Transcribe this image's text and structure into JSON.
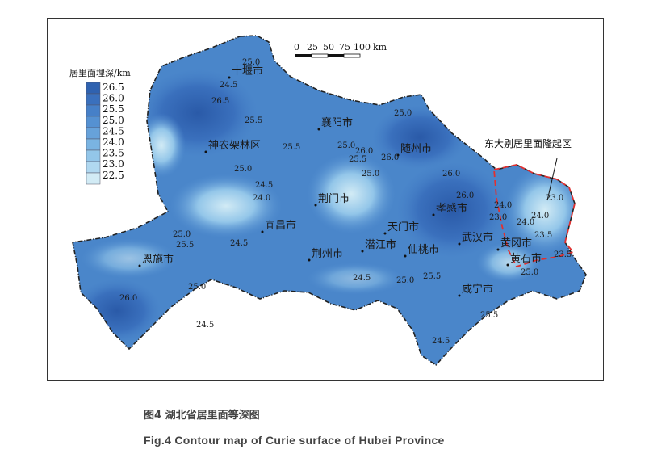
{
  "legend": {
    "title": "居里面埋深/km",
    "levels": [
      "26.5",
      "26.0",
      "25.5",
      "25.0",
      "24.5",
      "24.0",
      "23.5",
      "23.0",
      "22.5"
    ],
    "colors": [
      "#2f62b0",
      "#3a70bd",
      "#4680c8",
      "#5591d2",
      "#67a2da",
      "#7ab4e2",
      "#93c6e9",
      "#b0d8f0",
      "#d2ebf5"
    ]
  },
  "scale_bar": {
    "ticks": [
      "0",
      "25",
      "50",
      "75",
      "100"
    ],
    "unit": "km"
  },
  "cities": [
    "十堰市",
    "襄阳市",
    "神农架林区",
    "随州市",
    "荆门市",
    "孝感市",
    "宜昌市",
    "天门市",
    "武汉市",
    "黄冈市",
    "潜江市",
    "仙桃市",
    "荆州市",
    "恩施市",
    "黄石市",
    "咸宁市"
  ],
  "contour_labels": [
    "23.0",
    "24.0",
    "26.5",
    "25.0",
    "25.5",
    "24.5",
    "25.0",
    "26.0",
    "25.5",
    "25.0",
    "26.0",
    "26.0",
    "25.5",
    "25.0",
    "24.5",
    "24.0",
    "26.0",
    "25.0",
    "24.0",
    "23.0",
    "24.0",
    "23.5",
    "25.0",
    "25.5",
    "24.5",
    "24.5",
    "25.0",
    "25.5",
    "25.0",
    "25.5",
    "24.5",
    "26.0",
    "24.5",
    "25.0",
    "23.5"
  ],
  "uplift_zone": {
    "label": "东大别居里面隆起区",
    "border_color": "#e03030"
  },
  "caption": {
    "cn": "图4 湖北省居里面等深图",
    "en": "Fig.4 Contour map of Curie surface of Hubei Province"
  }
}
